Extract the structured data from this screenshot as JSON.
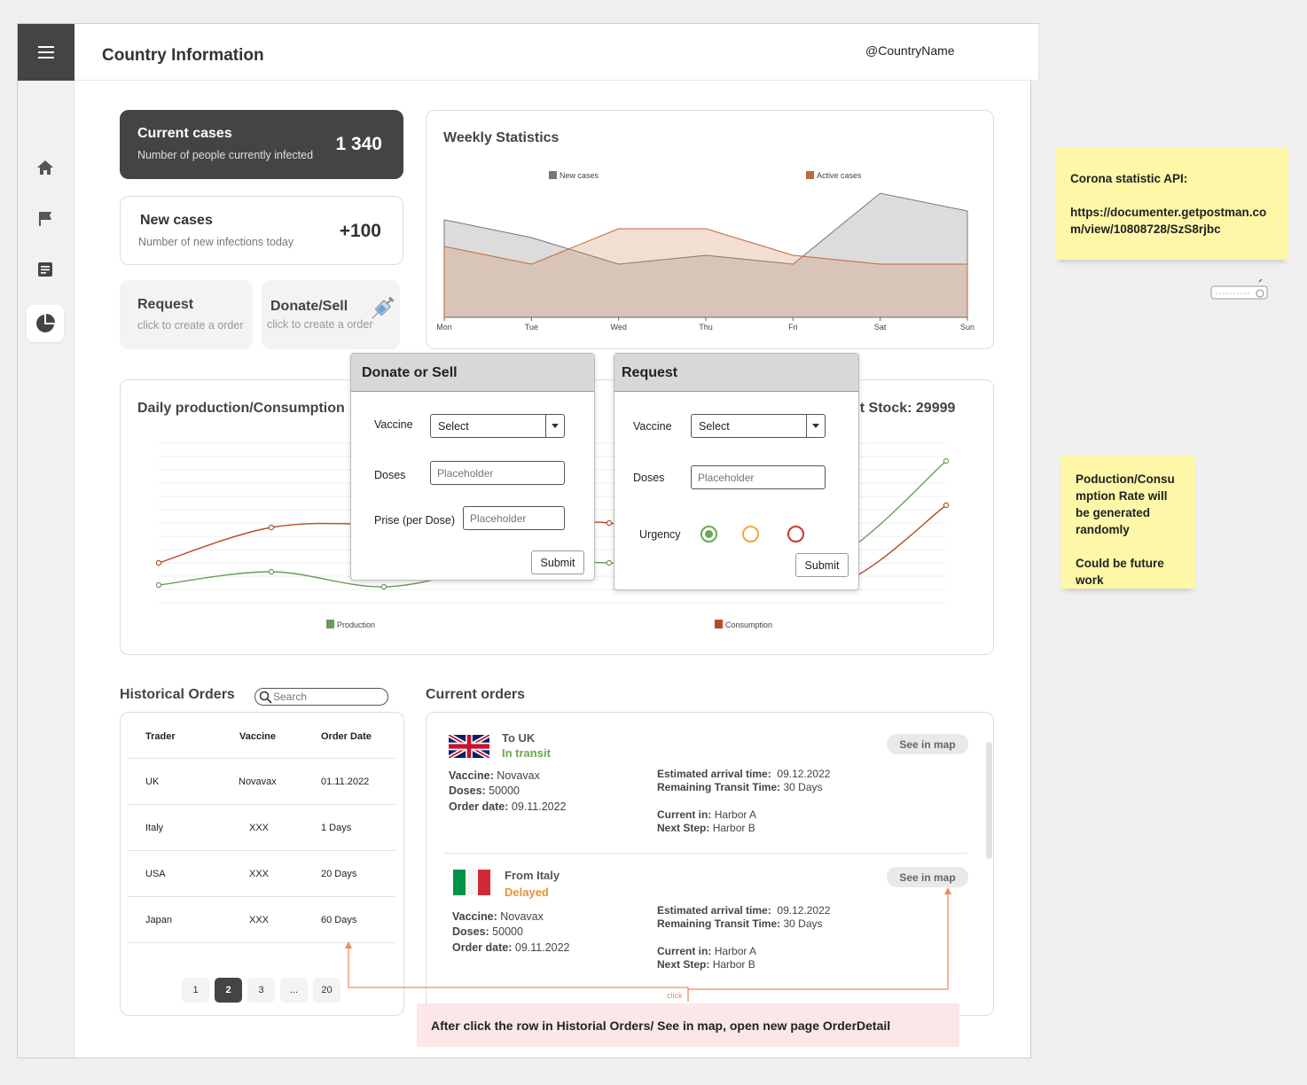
{
  "header": {
    "title": "Country Information",
    "country_name": "@CountryName"
  },
  "sidebar": {
    "items": [
      "home-icon",
      "flag-icon",
      "notes-icon",
      "pie-chart-icon"
    ]
  },
  "current_cases": {
    "title": "Current cases",
    "subtitle": "Number of people currently infected",
    "value": "1 340"
  },
  "new_cases": {
    "title": "New cases",
    "subtitle": "Number of new infections today",
    "value": "+100"
  },
  "request_btn": {
    "title": "Request",
    "subtitle": "click to create a order"
  },
  "donate_btn": {
    "title": "Donate/Sell",
    "subtitle": "click to create a order"
  },
  "weekly": {
    "title": "Weekly Statistics",
    "chart_data": {
      "type": "area",
      "categories": [
        "Mon",
        "Tue",
        "Wed",
        "Thu",
        "Fri",
        "Sat",
        "Sun"
      ],
      "series": [
        {
          "name": "New cases",
          "values": [
            110,
            90,
            60,
            70,
            60,
            140,
            120
          ],
          "color": "#777777"
        },
        {
          "name": "Active cases",
          "values": [
            80,
            60,
            100,
            100,
            70,
            60,
            60
          ],
          "color": "#c0683a"
        }
      ],
      "ylim": [
        0,
        150
      ]
    }
  },
  "daily": {
    "title": "Daily production/Consumption",
    "stock_label": "nt Stock: 29999",
    "chart_data": {
      "type": "line",
      "x": [
        0,
        1,
        2,
        3,
        4,
        5,
        6,
        7
      ],
      "series": [
        {
          "name": "Production",
          "values": [
            20,
            35,
            18,
            40,
            45,
            30,
            50,
            160
          ],
          "color": "#6b9a5e"
        },
        {
          "name": "Consumption",
          "values": [
            45,
            85,
            88,
            80,
            90,
            50,
            20,
            110
          ],
          "color": "#b84a28"
        }
      ],
      "ylim": [
        0,
        180
      ]
    }
  },
  "donate_modal": {
    "title": "Donate or Sell",
    "vaccine_label": "Vaccine",
    "vaccine_value": "Select",
    "doses_label": "Doses",
    "doses_placeholder": "Placeholder",
    "price_label": "Prise (per Dose)",
    "price_placeholder": "Placeholder",
    "submit": "Submit"
  },
  "request_modal": {
    "title": "Request",
    "vaccine_label": "Vaccine",
    "vaccine_value": "Select",
    "doses_label": "Doses",
    "doses_placeholder": "Placeholder",
    "urgency_label": "Urgency",
    "urgency_colors": [
      "#6aa84f",
      "#f0a640",
      "#cc3333"
    ],
    "submit": "Submit"
  },
  "historical": {
    "title": "Historical Orders",
    "search_placeholder": "Search",
    "columns": [
      "Trader",
      "Vaccine",
      "Order Date"
    ],
    "rows": [
      [
        "UK",
        "Novavax",
        "01.11.2022"
      ],
      [
        "Italy",
        "XXX",
        "1 Days"
      ],
      [
        "USA",
        "XXX",
        "20 Days"
      ],
      [
        "Japan",
        "XXX",
        "60 Days"
      ]
    ],
    "pages": [
      "1",
      "2",
      "3",
      "...",
      "20"
    ],
    "active_page": "2"
  },
  "current": {
    "title": "Current orders",
    "orders": [
      {
        "direction": "To UK",
        "status": "In transit",
        "status_color": "#6aa84f",
        "vaccine_label": "Vaccine:",
        "vaccine": "Novavax",
        "doses_label": "Doses:",
        "doses": "50000",
        "date_label": "Order date:",
        "date": "09.11.2022",
        "eta_label": "Estimated arrival time:",
        "eta": "09.12.2022",
        "remaining_label": "Remaining Transit Time:",
        "remaining": "30 Days",
        "current_label": "Current in:",
        "current_in": "Harbor A",
        "next_label": "Next Step:",
        "next_step": "Harbor B",
        "map_btn": "See in map"
      },
      {
        "direction": "From Italy",
        "status": "Delayed",
        "status_color": "#e69138",
        "vaccine_label": "Vaccine:",
        "vaccine": "Novavax",
        "doses_label": "Doses:",
        "doses": "50000",
        "date_label": "Order date:",
        "date": "09.11.2022",
        "eta_label": "Estimated arrival time:",
        "eta": "09.12.2022",
        "remaining_label": "Remaining Transit Time:",
        "remaining": "30 Days",
        "current_label": "Current in:",
        "current_in": "Harbor A",
        "next_label": "Next Step:",
        "next_step": "Harbor B",
        "map_btn": "See in map"
      }
    ]
  },
  "notes": {
    "api_line1": "Corona statistic API:",
    "api_line2": "https://documenter.getpostman.co",
    "api_line3": "m/view/10808728/SzS8rjbc",
    "prod_line1": "Poduction/Consu",
    "prod_line2": "mption Rate will",
    "prod_line3": "be generated",
    "prod_line4": "randomly",
    "prod_line5": "Could be future",
    "prod_line6": "work",
    "bottom": "After click the row in Historial Orders/ See in map, open new page OrderDetail",
    "click": "click"
  }
}
